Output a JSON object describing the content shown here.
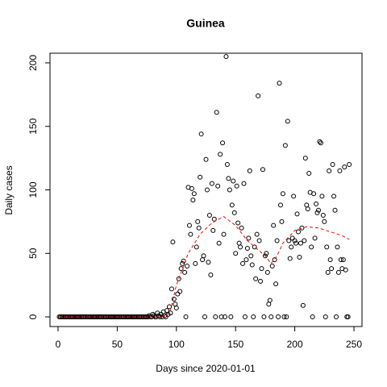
{
  "chart_data": {
    "type": "scatter",
    "title": "Guinea",
    "xlabel": "Days since 2020-01-01",
    "ylabel": "Daily cases",
    "x": [
      1,
      2,
      3,
      4,
      5,
      6,
      7,
      8,
      9,
      10,
      11,
      12,
      13,
      14,
      15,
      16,
      17,
      18,
      19,
      20,
      21,
      22,
      23,
      24,
      25,
      26,
      27,
      28,
      29,
      30,
      31,
      32,
      33,
      34,
      35,
      36,
      37,
      38,
      39,
      40,
      41,
      42,
      43,
      44,
      45,
      46,
      47,
      48,
      49,
      50,
      51,
      52,
      53,
      54,
      55,
      56,
      57,
      58,
      59,
      60,
      61,
      62,
      63,
      64,
      65,
      66,
      67,
      68,
      69,
      70,
      71,
      72,
      73,
      74,
      75,
      76,
      77,
      78,
      79,
      80,
      81,
      82,
      83,
      84,
      85,
      86,
      87,
      88,
      89,
      90,
      91,
      92,
      93,
      94,
      95,
      96,
      97,
      98,
      99,
      100,
      101,
      102,
      103,
      104,
      105,
      106,
      107,
      108,
      109,
      110,
      111,
      112,
      113,
      114,
      115,
      116,
      117,
      118,
      119,
      120,
      121,
      122,
      123,
      124,
      125,
      126,
      127,
      128,
      129,
      130,
      131,
      132,
      133,
      134,
      135,
      136,
      137,
      138,
      139,
      140,
      141,
      142,
      143,
      144,
      145,
      146,
      147,
      148,
      149,
      150,
      151,
      152,
      153,
      154,
      155,
      156,
      157,
      158,
      159,
      160,
      161,
      162,
      163,
      164,
      165,
      166,
      167,
      168,
      169,
      170,
      171,
      172,
      173,
      174,
      175,
      176,
      177,
      178,
      179,
      180,
      181,
      182,
      183,
      184,
      185,
      186,
      187,
      188,
      189,
      190,
      191,
      192,
      193,
      194,
      195,
      196,
      197,
      198,
      199,
      200,
      201,
      202,
      203,
      204,
      205,
      206,
      207,
      208,
      209,
      210,
      211,
      212,
      213,
      214,
      215,
      216,
      217,
      218,
      219,
      220,
      221,
      222,
      223,
      224,
      225,
      226,
      227,
      228,
      229,
      230,
      231,
      232,
      233,
      234,
      235,
      236,
      237,
      238,
      239,
      240,
      241,
      242,
      243,
      244,
      245,
      246
    ],
    "values": [
      0,
      0,
      0,
      0,
      0,
      0,
      0,
      0,
      0,
      0,
      0,
      0,
      0,
      0,
      0,
      0,
      0,
      0,
      0,
      0,
      0,
      0,
      0,
      0,
      0,
      0,
      0,
      0,
      0,
      0,
      0,
      0,
      0,
      0,
      0,
      0,
      0,
      0,
      0,
      0,
      0,
      0,
      0,
      0,
      0,
      0,
      0,
      0,
      0,
      0,
      0,
      0,
      0,
      0,
      0,
      0,
      0,
      0,
      0,
      0,
      0,
      0,
      0,
      0,
      0,
      0,
      0,
      0,
      0,
      0,
      0,
      0,
      0,
      0,
      0,
      0,
      1,
      0,
      0,
      2,
      1,
      0,
      0,
      3,
      1,
      0,
      2,
      0,
      4,
      1,
      0,
      5,
      2,
      8,
      3,
      22,
      59,
      14,
      10,
      7,
      18,
      30,
      20,
      38,
      42,
      44,
      35,
      0,
      40,
      102,
      72,
      65,
      101,
      92,
      97,
      42,
      55,
      75,
      70,
      110,
      144,
      45,
      48,
      0,
      124,
      100,
      43,
      80,
      33,
      105,
      68,
      77,
      0,
      161,
      103,
      58,
      128,
      0,
      137,
      65,
      0,
      205,
      120,
      109,
      100,
      0,
      88,
      107,
      82,
      50,
      103,
      74,
      58,
      55,
      70,
      42,
      105,
      0,
      45,
      54,
      62,
      115,
      48,
      41,
      0,
      55,
      30,
      65,
      174,
      60,
      28,
      38,
      116,
      0,
      48,
      50,
      35,
      10,
      13,
      0,
      40,
      72,
      45,
      26,
      60,
      0,
      184,
      88,
      75,
      97,
      0,
      135,
      0,
      154,
      60,
      46,
      55,
      62,
      95,
      60,
      58,
      81,
      67,
      47,
      58,
      70,
      9,
      60,
      125,
      88,
      85,
      113,
      98,
      55,
      0,
      97,
      62,
      89,
      82,
      84,
      138,
      137,
      95,
      80,
      75,
      0,
      55,
      35,
      115,
      45,
      38,
      120,
      95,
      84,
      0,
      55,
      35,
      115,
      45,
      38,
      45,
      118,
      37,
      0,
      0,
      120
    ],
    "smooth": {
      "color": "#ff0000",
      "x": [
        1,
        20,
        40,
        60,
        80,
        90,
        95,
        100,
        110,
        120,
        130,
        140,
        150,
        160,
        170,
        175,
        180,
        185,
        190,
        200,
        210,
        220,
        230,
        240,
        246
      ],
      "values": [
        0,
        0,
        0,
        0,
        0,
        0,
        5,
        25,
        50,
        65,
        74,
        79,
        72,
        60,
        52,
        48,
        42,
        48,
        58,
        68,
        71,
        70,
        67,
        64,
        61
      ]
    },
    "xlim": [
      -6.8,
      256.8
    ],
    "xticks": [
      0,
      50,
      100,
      150,
      200,
      250
    ],
    "ylim": [
      -7.6,
      207.6
    ],
    "yticks": [
      0,
      50,
      100,
      150,
      200
    ]
  }
}
